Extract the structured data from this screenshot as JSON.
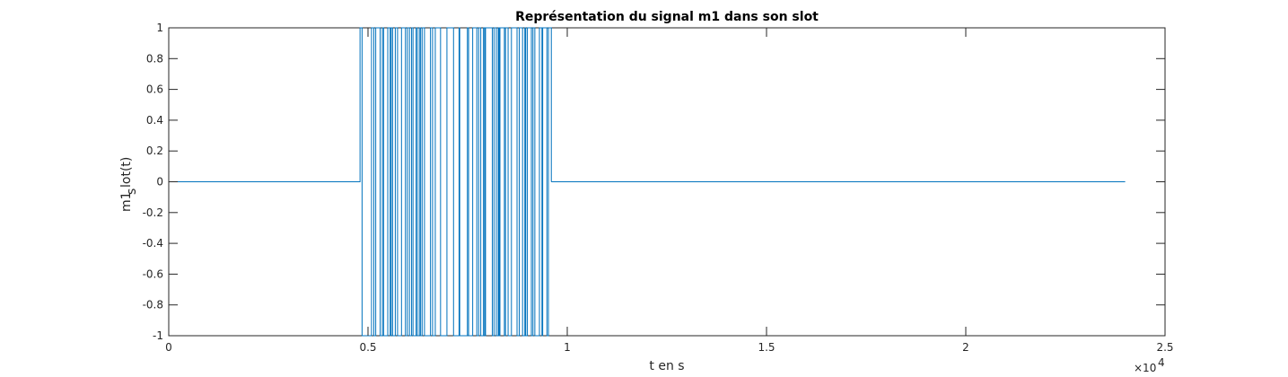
{
  "chart_data": {
    "type": "line",
    "title": "Représentation du signal m1 dans son slot",
    "xlabel": "t en s",
    "ylabel_main": "m1",
    "ylabel_sub": "s",
    "ylabel_rest": "lot(t)",
    "x_exponent_prefix": "×10",
    "x_exponent_power": "4",
    "xlim": [
      0,
      2.5
    ],
    "ylim": [
      -1,
      1
    ],
    "x_scale": 10000,
    "xticks": [
      0,
      0.5,
      1,
      1.5,
      2,
      2.5
    ],
    "xtick_labels": [
      "0",
      "0.5",
      "1",
      "1.5",
      "2",
      "2.5"
    ],
    "yticks": [
      1,
      0.8,
      0.6,
      0.4,
      0.2,
      0,
      -0.2,
      -0.4,
      -0.6,
      -0.8,
      -1
    ],
    "ytick_labels": [
      "1",
      "0.8",
      "0.6",
      "0.4",
      "0.2",
      "0",
      "-0.2",
      "-0.4",
      "-0.6",
      "-0.8",
      "-1"
    ],
    "grid": false,
    "line_color": "#0072BD",
    "series": [
      {
        "segments": [
          {
            "type": "flat",
            "x_start": 0,
            "x_end": 4800,
            "y": 0
          },
          {
            "type": "binary_oscillation",
            "x_start": 4800,
            "x_end": 9600,
            "y_values": [
              -1,
              1
            ]
          },
          {
            "type": "flat",
            "x_start": 9600,
            "x_end": 24000,
            "y": 0
          }
        ]
      }
    ]
  }
}
